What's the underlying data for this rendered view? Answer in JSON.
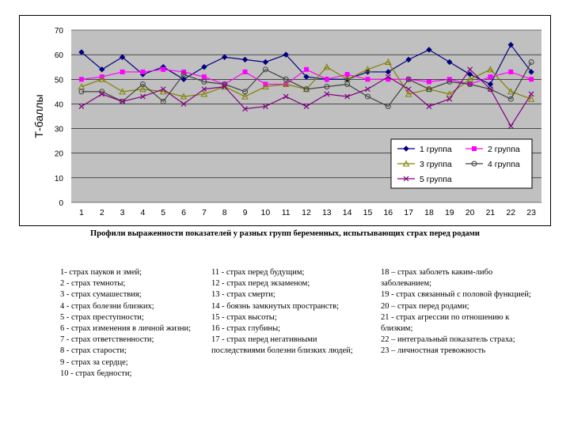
{
  "chart_data": {
    "type": "line",
    "ylabel": "Т-баллы",
    "ylim": [
      0,
      70
    ],
    "yticks": [
      0,
      10,
      20,
      30,
      40,
      50,
      60,
      70
    ],
    "categories": [
      "1",
      "2",
      "3",
      "4",
      "5",
      "6",
      "7",
      "8",
      "9",
      "10",
      "11",
      "12",
      "13",
      "14",
      "15",
      "16",
      "17",
      "18",
      "19",
      "20",
      "21",
      "22",
      "23"
    ],
    "grid": "horizontal",
    "legend_position": "right-middle",
    "plot_background": "#c0c0c0",
    "series": [
      {
        "name": "1 группа",
        "color": "#000080",
        "marker": "diamond",
        "values": [
          61,
          54,
          59,
          52,
          55,
          50,
          55,
          59,
          58,
          57,
          60,
          51,
          50,
          50,
          53,
          53,
          58,
          62,
          57,
          52,
          48,
          64,
          53
        ]
      },
      {
        "name": "2 группа",
        "color": "#ff00ff",
        "marker": "square",
        "values": [
          50,
          51,
          53,
          53,
          54,
          53,
          51,
          48,
          53,
          48,
          48,
          54,
          50,
          52,
          50,
          50,
          50,
          49,
          50,
          48,
          51,
          53,
          50
        ]
      },
      {
        "name": "3 группа",
        "color": "#808000",
        "marker": "triangle",
        "values": [
          47,
          50,
          45,
          46,
          45,
          43,
          44,
          47,
          43,
          47,
          48,
          46,
          55,
          50,
          54,
          57,
          44,
          46,
          44,
          50,
          54,
          45,
          42
        ]
      },
      {
        "name": "4 группа",
        "color": "#404040",
        "marker": "circle",
        "values": [
          45,
          45,
          41,
          48,
          41,
          52,
          49,
          48,
          45,
          54,
          50,
          46,
          47,
          48,
          43,
          39,
          50,
          46,
          49,
          48,
          46,
          42,
          57
        ]
      },
      {
        "name": "5 группа",
        "color": "#800080",
        "marker": "x",
        "values": [
          39,
          44,
          41,
          43,
          46,
          40,
          46,
          47,
          38,
          39,
          43,
          39,
          44,
          43,
          46,
          51,
          46,
          39,
          42,
          54,
          46,
          31,
          44
        ]
      }
    ]
  },
  "caption": "Профили выраженности показателей у разных групп беременных, испытывающих страх перед родами",
  "legend_items": {
    "col1": [
      "1- страх пауков и змей;",
      "2 - страх темноты;",
      "3 - страх сумашествия;",
      "4 - страх болезни близких;",
      "5 - страх преступности;",
      "6 - страх изменения в личной жизни;",
      "7 - страх ответственности;",
      "8 - страх старости;",
      "9 - страх за сердце;",
      "10 - страх бедности;"
    ],
    "col2": [
      "11 - страх перед будущим;",
      "12 - страх перед экзаменом;",
      "13 - страх смерти;",
      "14 - боязнь замкнутых пространств;",
      "15 - страх высоты;",
      "16 - страх глубины;",
      "17 - страх перед негативными последствиями болезни близких людей;"
    ],
    "col3": [
      "18 – страх заболеть каким-либо заболеванием;",
      "19 - страх связанный с половой функцией;",
      "20 – страх перед родами;",
      "21 - страх агрессии по отношению к близким;",
      "22 – интегральный показатель страха;",
      "23 – личностная тревожность"
    ]
  }
}
